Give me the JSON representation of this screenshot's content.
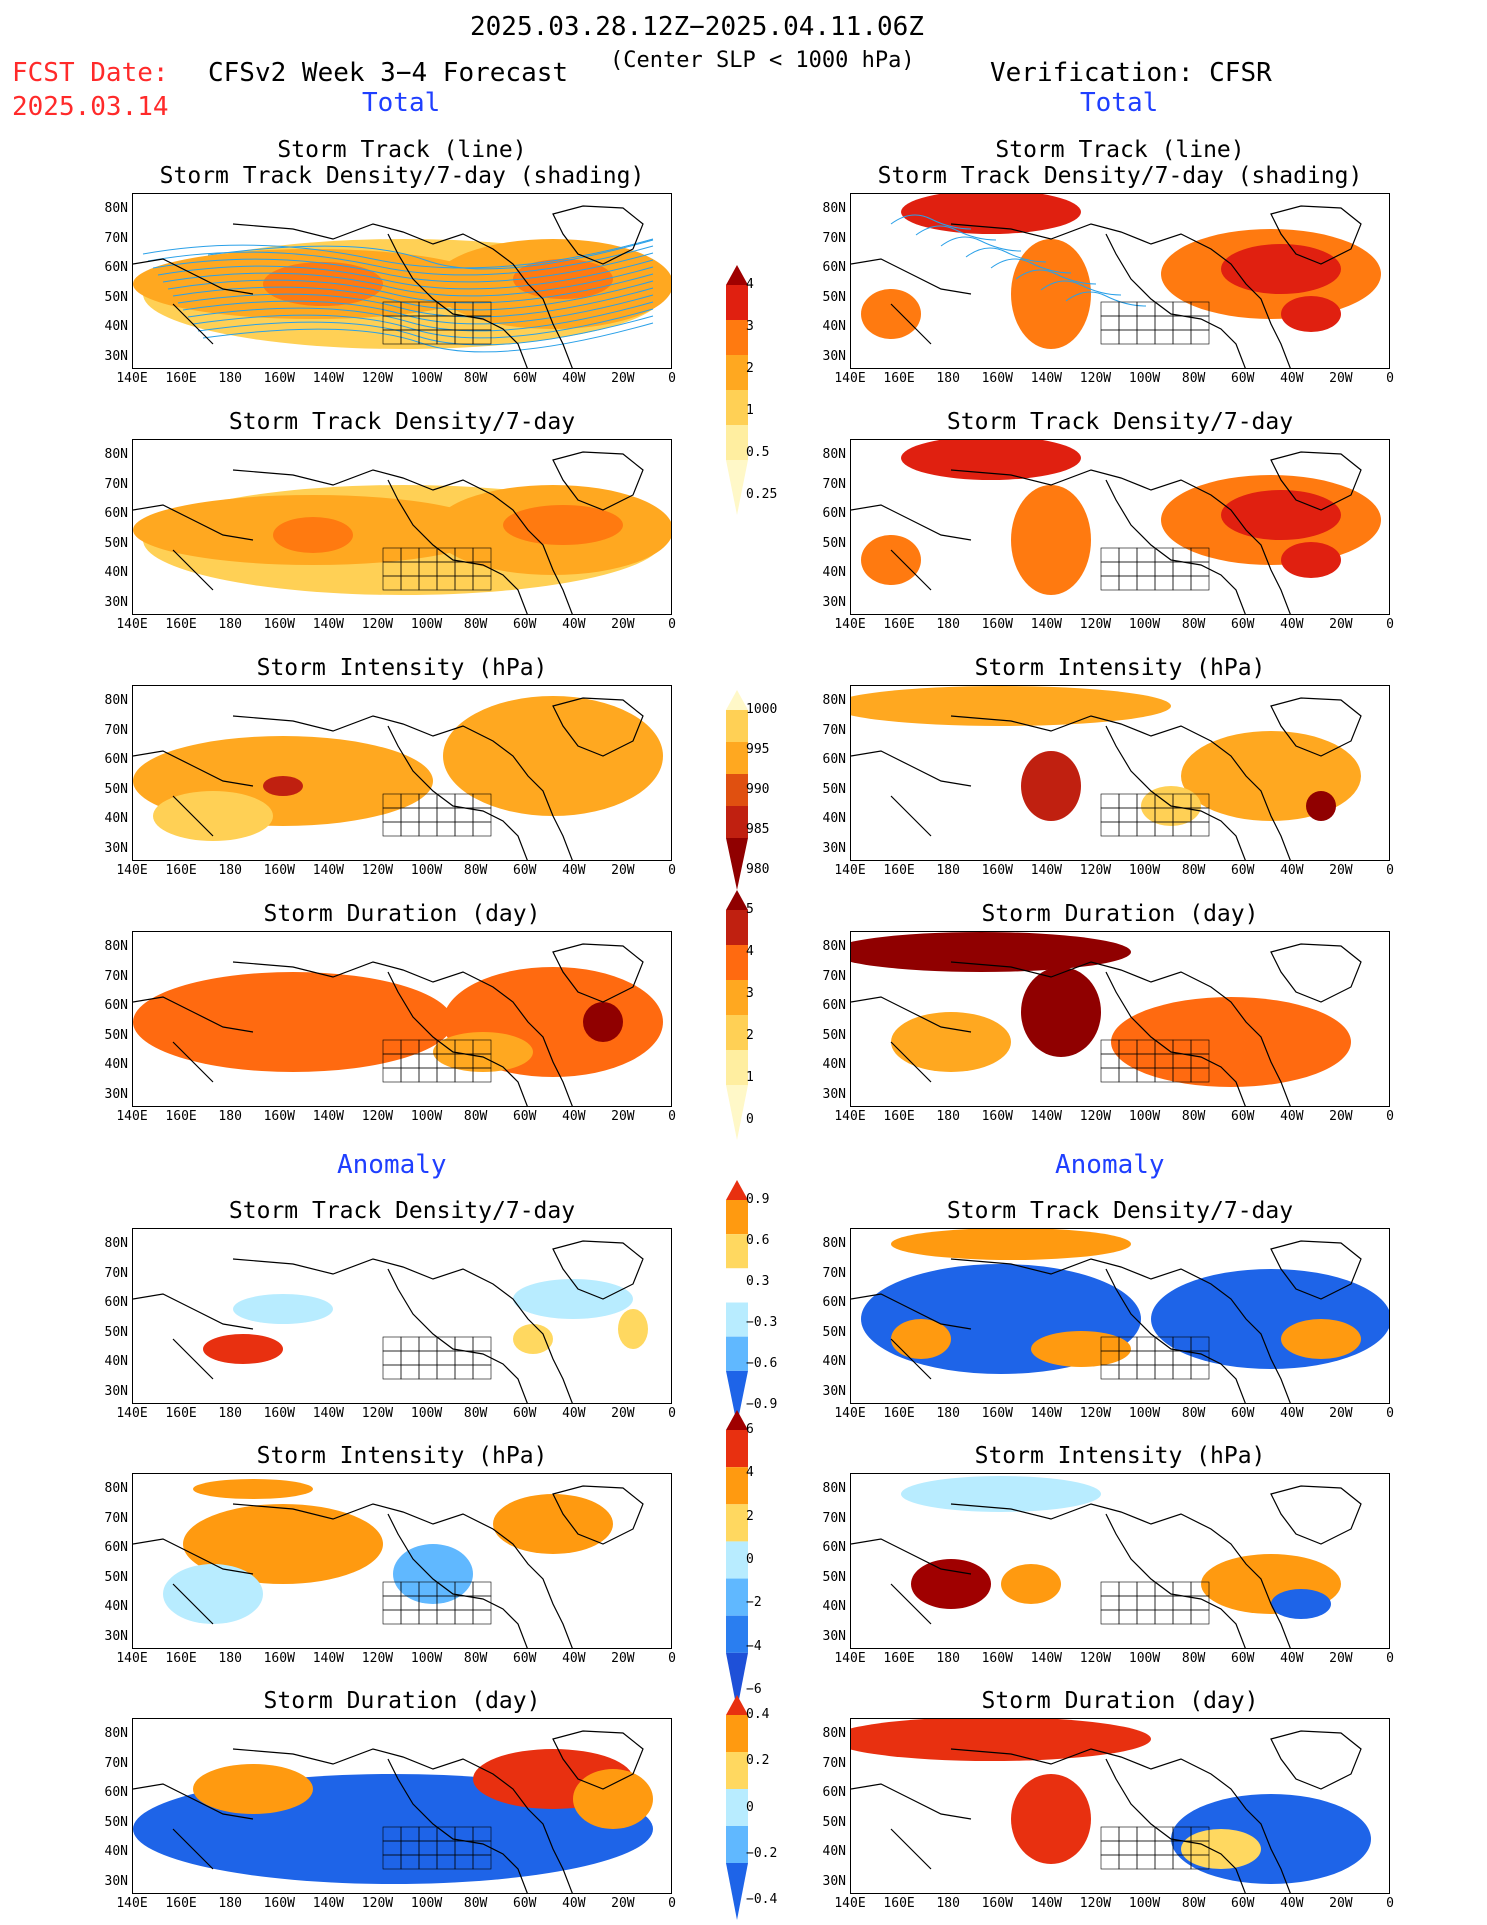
{
  "header": {
    "period": "2025.03.28.12Z−2025.04.11.06Z",
    "fcst_label": "FCST Date:",
    "fcst_date": "2025.03.14",
    "forecast_title": "CFSv2 Week 3−4 Forecast",
    "criterion": "(Center SLP < 1000 hPa)",
    "verification": "Verification: CFSR"
  },
  "sections": {
    "total": "Total",
    "anomaly": "Anomaly"
  },
  "panel_titles": {
    "track": [
      "Storm Track (line)",
      "Storm Track Density/7-day (shading)"
    ],
    "density": "Storm Track Density/7-day",
    "intensity": "Storm Intensity (hPa)",
    "duration": "Storm Duration (day)"
  },
  "axes": {
    "lat_labels": [
      "80N",
      "70N",
      "60N",
      "50N",
      "40N",
      "30N"
    ],
    "lon_labels": [
      "140E",
      "160E",
      "180",
      "160W",
      "140W",
      "120W",
      "100W",
      "80W",
      "60W",
      "40W",
      "20W",
      "0"
    ]
  },
  "colorbars": {
    "density": {
      "labels": [
        "4",
        "3",
        "2",
        "1",
        "0.5",
        "0.25"
      ],
      "colors": [
        "#a00000",
        "#e02010",
        "#ff7a10",
        "#ffa820",
        "#ffd055",
        "#ffeea0",
        "#fff8c8"
      ]
    },
    "intensity": {
      "labels": [
        "1000",
        "995",
        "990",
        "985",
        "980"
      ],
      "colors": [
        "#fff8c8",
        "#ffd055",
        "#ffa820",
        "#e05010",
        "#c02010",
        "#900000"
      ]
    },
    "duration": {
      "labels": [
        "5",
        "4",
        "3",
        "2",
        "1",
        "0"
      ],
      "colors": [
        "#900000",
        "#c02010",
        "#ff6a10",
        "#ffa820",
        "#ffd055",
        "#ffeea0",
        "#fff8c8"
      ]
    },
    "anom_density": {
      "labels": [
        "0.9",
        "0.6",
        "0.3",
        "−0.3",
        "−0.6",
        "−0.9"
      ],
      "colors": [
        "#e83010",
        "#ff9a10",
        "#ffd860",
        "#ffffff",
        "#b8ecff",
        "#60b8ff",
        "#1e64e8"
      ]
    },
    "anom_intensity": {
      "labels": [
        "6",
        "4",
        "2",
        "0",
        "−2",
        "−4",
        "−6"
      ],
      "colors": [
        "#a00000",
        "#e83010",
        "#ff9a10",
        "#ffd860",
        "#b8ecff",
        "#60b8ff",
        "#2a7ef0",
        "#1e50d8"
      ]
    },
    "anom_duration": {
      "labels": [
        "0.4",
        "0.2",
        "0",
        "−0.2",
        "−0.4"
      ],
      "colors": [
        "#e83010",
        "#ff9a10",
        "#ffd860",
        "#b8ecff",
        "#60b8ff",
        "#1e64e8"
      ]
    }
  }
}
